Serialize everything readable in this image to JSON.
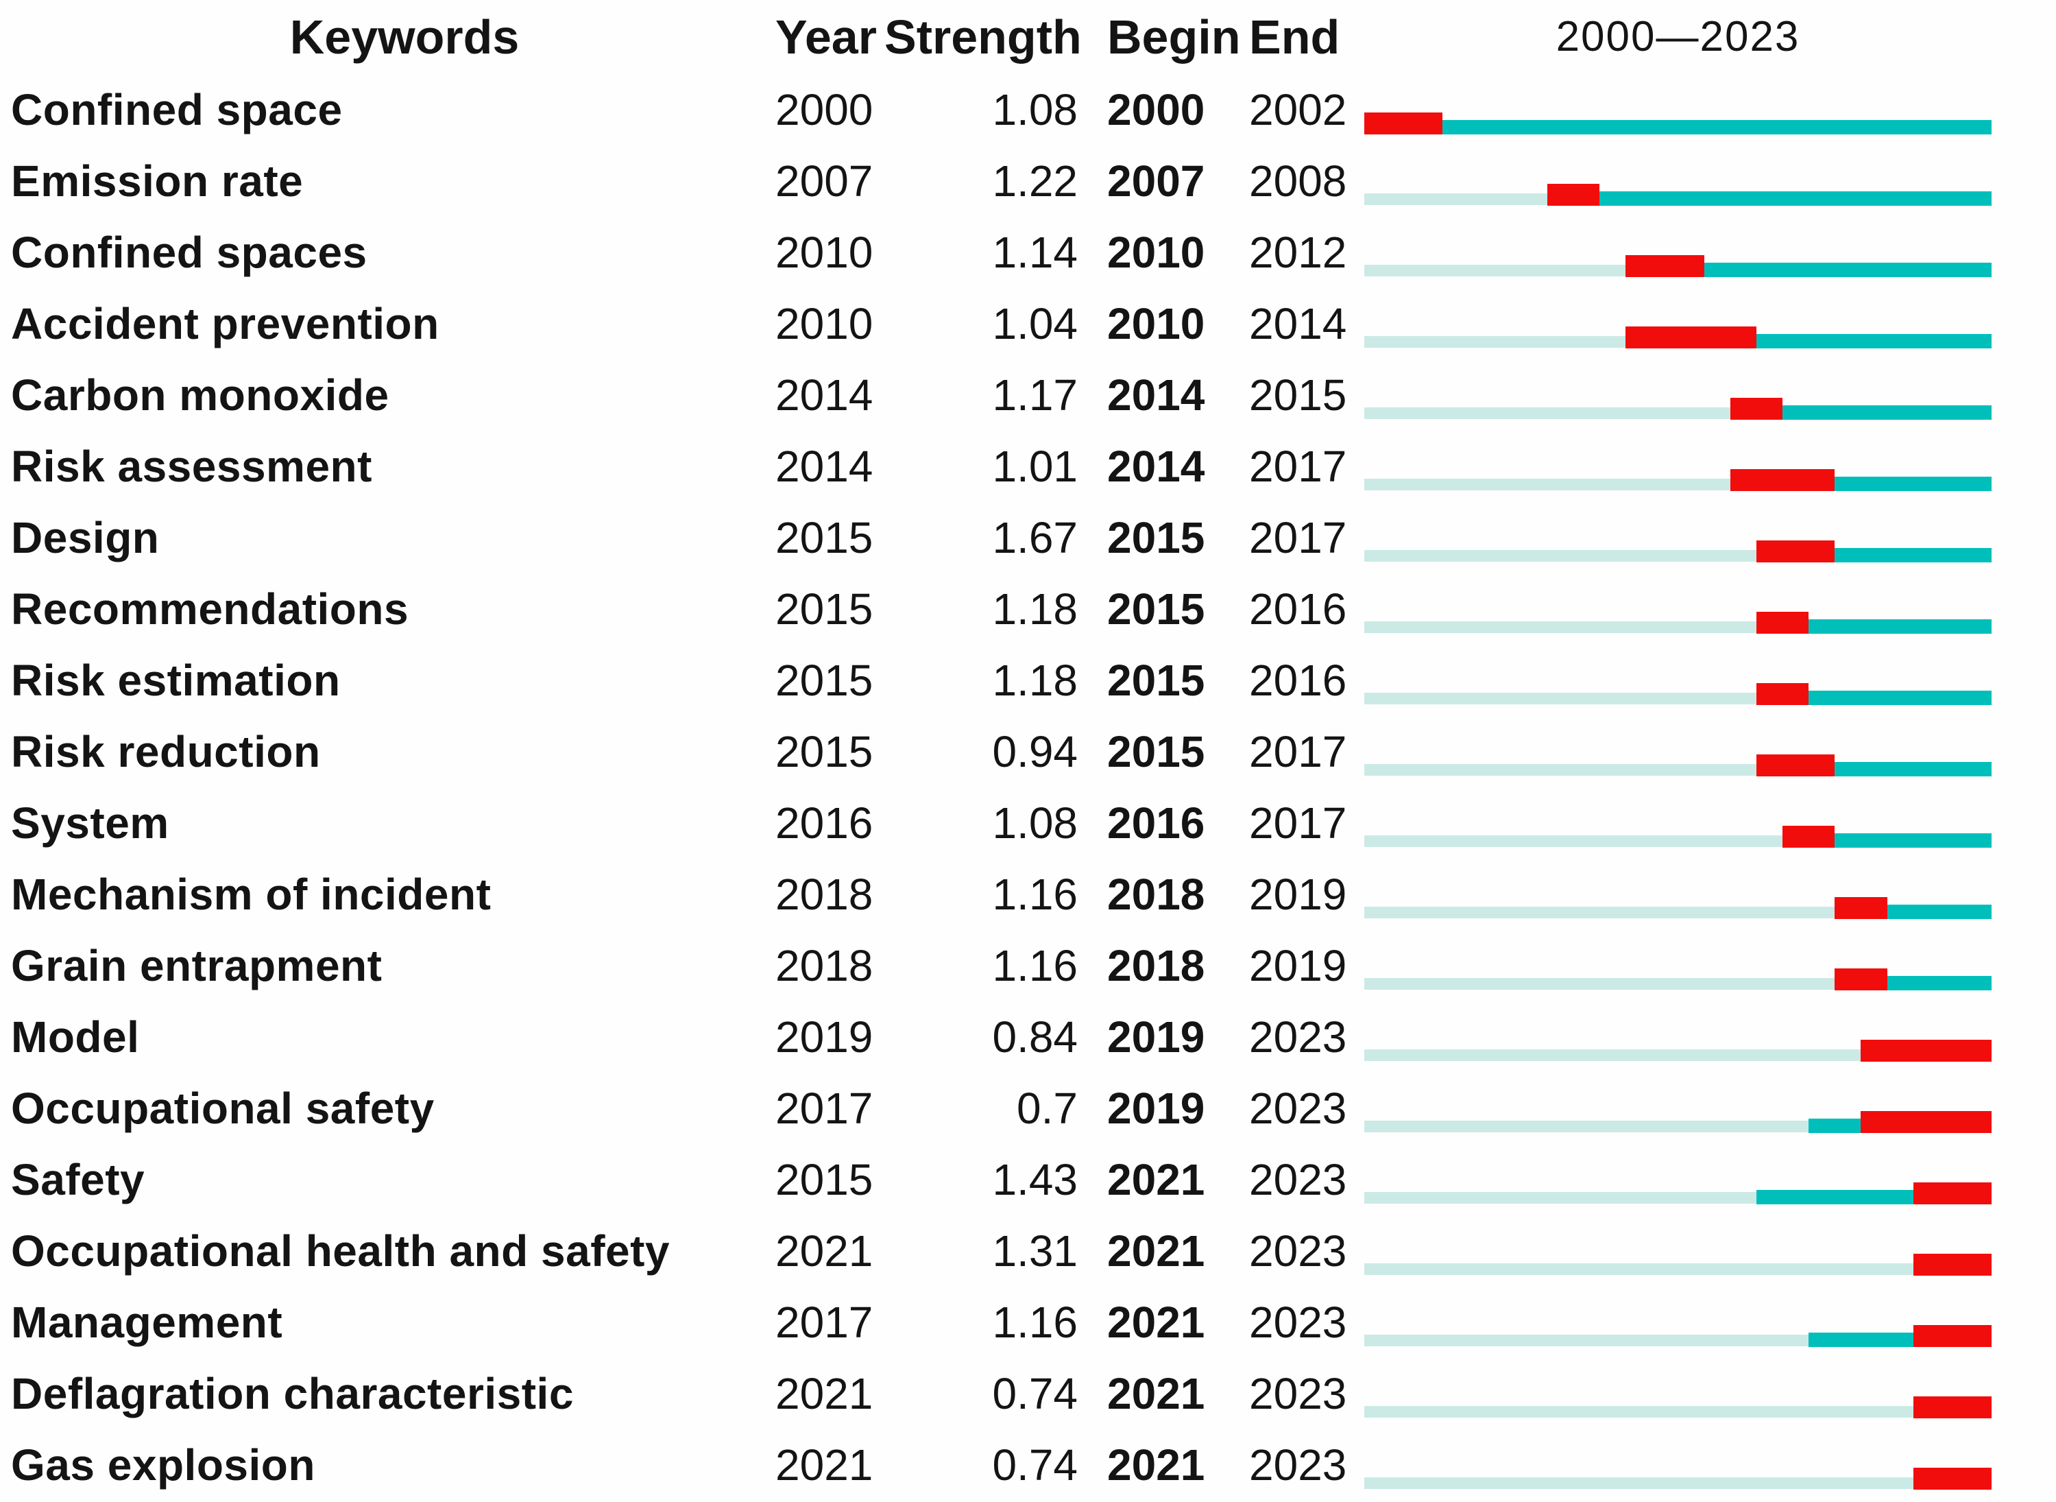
{
  "headers": {
    "keywords": "Keywords",
    "year": "Year",
    "strength": "Strength",
    "begin": "Begin",
    "end": "End",
    "range": "2000—2023"
  },
  "timeline": {
    "start_year": 2000,
    "end_year": 2023
  },
  "colors": {
    "burst_red": "#F20D0D",
    "active_teal": "#00BFBA",
    "pre_cyan": "#CBEAE6",
    "text": "#141414",
    "background": "#FEFEFE"
  },
  "rows": [
    {
      "keyword": "Confined space",
      "year": "2000",
      "strength": "1.08",
      "begin": "2000",
      "end": "2002"
    },
    {
      "keyword": "Emission rate",
      "year": "2007",
      "strength": "1.22",
      "begin": "2007",
      "end": "2008"
    },
    {
      "keyword": "Confined spaces",
      "year": "2010",
      "strength": "1.14",
      "begin": "2010",
      "end": "2012"
    },
    {
      "keyword": "Accident prevention",
      "year": "2010",
      "strength": "1.04",
      "begin": "2010",
      "end": "2014"
    },
    {
      "keyword": "Carbon monoxide",
      "year": "2014",
      "strength": "1.17",
      "begin": "2014",
      "end": "2015"
    },
    {
      "keyword": "Risk assessment",
      "year": "2014",
      "strength": "1.01",
      "begin": "2014",
      "end": "2017"
    },
    {
      "keyword": "Design",
      "year": "2015",
      "strength": "1.67",
      "begin": "2015",
      "end": "2017"
    },
    {
      "keyword": "Recommendations",
      "year": "2015",
      "strength": "1.18",
      "begin": "2015",
      "end": "2016"
    },
    {
      "keyword": "Risk estimation",
      "year": "2015",
      "strength": "1.18",
      "begin": "2015",
      "end": "2016"
    },
    {
      "keyword": "Risk reduction",
      "year": "2015",
      "strength": "0.94",
      "begin": "2015",
      "end": "2017"
    },
    {
      "keyword": "System",
      "year": "2016",
      "strength": "1.08",
      "begin": "2016",
      "end": "2017"
    },
    {
      "keyword": "Mechanism of incident",
      "year": "2018",
      "strength": "1.16",
      "begin": "2018",
      "end": "2019"
    },
    {
      "keyword": "Grain entrapment",
      "year": "2018",
      "strength": "1.16",
      "begin": "2018",
      "end": "2019"
    },
    {
      "keyword": "Model",
      "year": "2019",
      "strength": "0.84",
      "begin": "2019",
      "end": "2023"
    },
    {
      "keyword": "Occupational safety",
      "year": "2017",
      "strength": "0.7",
      "begin": "2019",
      "end": "2023"
    },
    {
      "keyword": "Safety",
      "year": "2015",
      "strength": "1.43",
      "begin": "2021",
      "end": "2023"
    },
    {
      "keyword": "Occupational health and safety",
      "year": "2021",
      "strength": "1.31",
      "begin": "2021",
      "end": "2023"
    },
    {
      "keyword": "Management",
      "year": "2017",
      "strength": "1.16",
      "begin": "2021",
      "end": "2023"
    },
    {
      "keyword": "Deflagration characteristic",
      "year": "2021",
      "strength": "0.74",
      "begin": "2021",
      "end": "2023"
    },
    {
      "keyword": "Gas explosion",
      "year": "2021",
      "strength": "0.74",
      "begin": "2021",
      "end": "2023"
    }
  ],
  "chart_data": {
    "type": "table",
    "title": "2000—2023",
    "columns": [
      "Keywords",
      "Year",
      "Strength",
      "Begin",
      "End",
      "2000—2023"
    ],
    "rows": [
      [
        "Confined space",
        2000,
        1.08,
        2000,
        2002
      ],
      [
        "Emission rate",
        2007,
        1.22,
        2007,
        2008
      ],
      [
        "Confined spaces",
        2010,
        1.14,
        2010,
        2012
      ],
      [
        "Accident prevention",
        2010,
        1.04,
        2010,
        2014
      ],
      [
        "Carbon monoxide",
        2014,
        1.17,
        2014,
        2015
      ],
      [
        "Risk assessment",
        2014,
        1.01,
        2014,
        2017
      ],
      [
        "Design",
        2015,
        1.67,
        2015,
        2017
      ],
      [
        "Recommendations",
        2015,
        1.18,
        2015,
        2016
      ],
      [
        "Risk estimation",
        2015,
        1.18,
        2015,
        2016
      ],
      [
        "Risk reduction",
        2015,
        0.94,
        2015,
        2017
      ],
      [
        "System",
        2016,
        1.08,
        2016,
        2017
      ],
      [
        "Mechanism of incident",
        2018,
        1.16,
        2018,
        2019
      ],
      [
        "Grain entrapment",
        2018,
        1.16,
        2018,
        2019
      ],
      [
        "Model",
        2019,
        0.84,
        2019,
        2023
      ],
      [
        "Occupational safety",
        2017,
        0.7,
        2019,
        2023
      ],
      [
        "Safety",
        2015,
        1.43,
        2021,
        2023
      ],
      [
        "Occupational health and safety",
        2021,
        1.31,
        2021,
        2023
      ],
      [
        "Management",
        2017,
        1.16,
        2021,
        2023
      ],
      [
        "Deflagration characteristic",
        2021,
        0.74,
        2021,
        2023
      ],
      [
        "Gas explosion",
        2021,
        0.74,
        2021,
        2023
      ]
    ],
    "timeline": {
      "axis_range": [
        2000,
        2023
      ],
      "bar_segments": {
        "light_cyan": "years before keyword first appearance",
        "teal": "years keyword active without burst",
        "red": "burst interval Begin–End"
      },
      "segment_colors": {
        "light_cyan": "#CBEAE6",
        "teal": "#00BFBA",
        "red": "#F20D0D"
      },
      "legend_position": "none",
      "grid": false
    }
  }
}
